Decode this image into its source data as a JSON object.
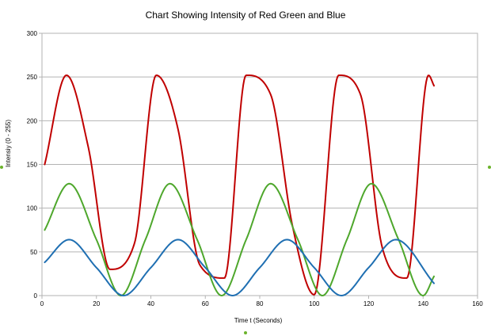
{
  "chart_data": {
    "type": "line",
    "title": "Chart Showing Intensity of Red Green and Blue",
    "xlabel": "Time t (Seconds)",
    "ylabel": "Intensiy (0 - 255)",
    "xlim": [
      0,
      160
    ],
    "ylim": [
      0,
      300
    ],
    "x_ticks": [
      "0",
      "20",
      "40",
      "60",
      "80",
      "100",
      "120",
      "140",
      "160"
    ],
    "y_ticks": [
      "0",
      "50",
      "100",
      "150",
      "200",
      "250",
      "300"
    ],
    "grid": true,
    "legend": "none",
    "x_range": [
      1,
      144
    ],
    "series": [
      {
        "color": "#c00000",
        "x": [
          1,
          9,
          17,
          25,
          34,
          42,
          50,
          58,
          67,
          75,
          84,
          92,
          100,
          109,
          117,
          125,
          134,
          142,
          144
        ],
        "values": [
          150,
          252,
          170,
          30,
          60,
          252,
          190,
          35,
          20,
          252,
          230,
          80,
          1,
          252,
          230,
          55,
          20,
          252,
          240
        ]
      },
      {
        "color": "#4ea72c",
        "x": [
          1,
          10,
          20,
          29,
          38,
          47,
          57,
          66,
          75,
          84,
          94,
          103,
          112,
          121,
          131,
          140,
          144
        ],
        "values": [
          75,
          128,
          64,
          0,
          64,
          128,
          64,
          0,
          64,
          128,
          64,
          0,
          64,
          128,
          64,
          0,
          22
        ]
      },
      {
        "color": "#1f6fb2",
        "x": [
          1,
          10,
          20,
          30,
          40,
          50,
          60,
          70,
          80,
          90,
          100,
          110,
          120,
          130,
          144
        ],
        "values": [
          38,
          64,
          32,
          0,
          32,
          64,
          32,
          0,
          32,
          64,
          32,
          0,
          32,
          64,
          14
        ]
      }
    ]
  }
}
